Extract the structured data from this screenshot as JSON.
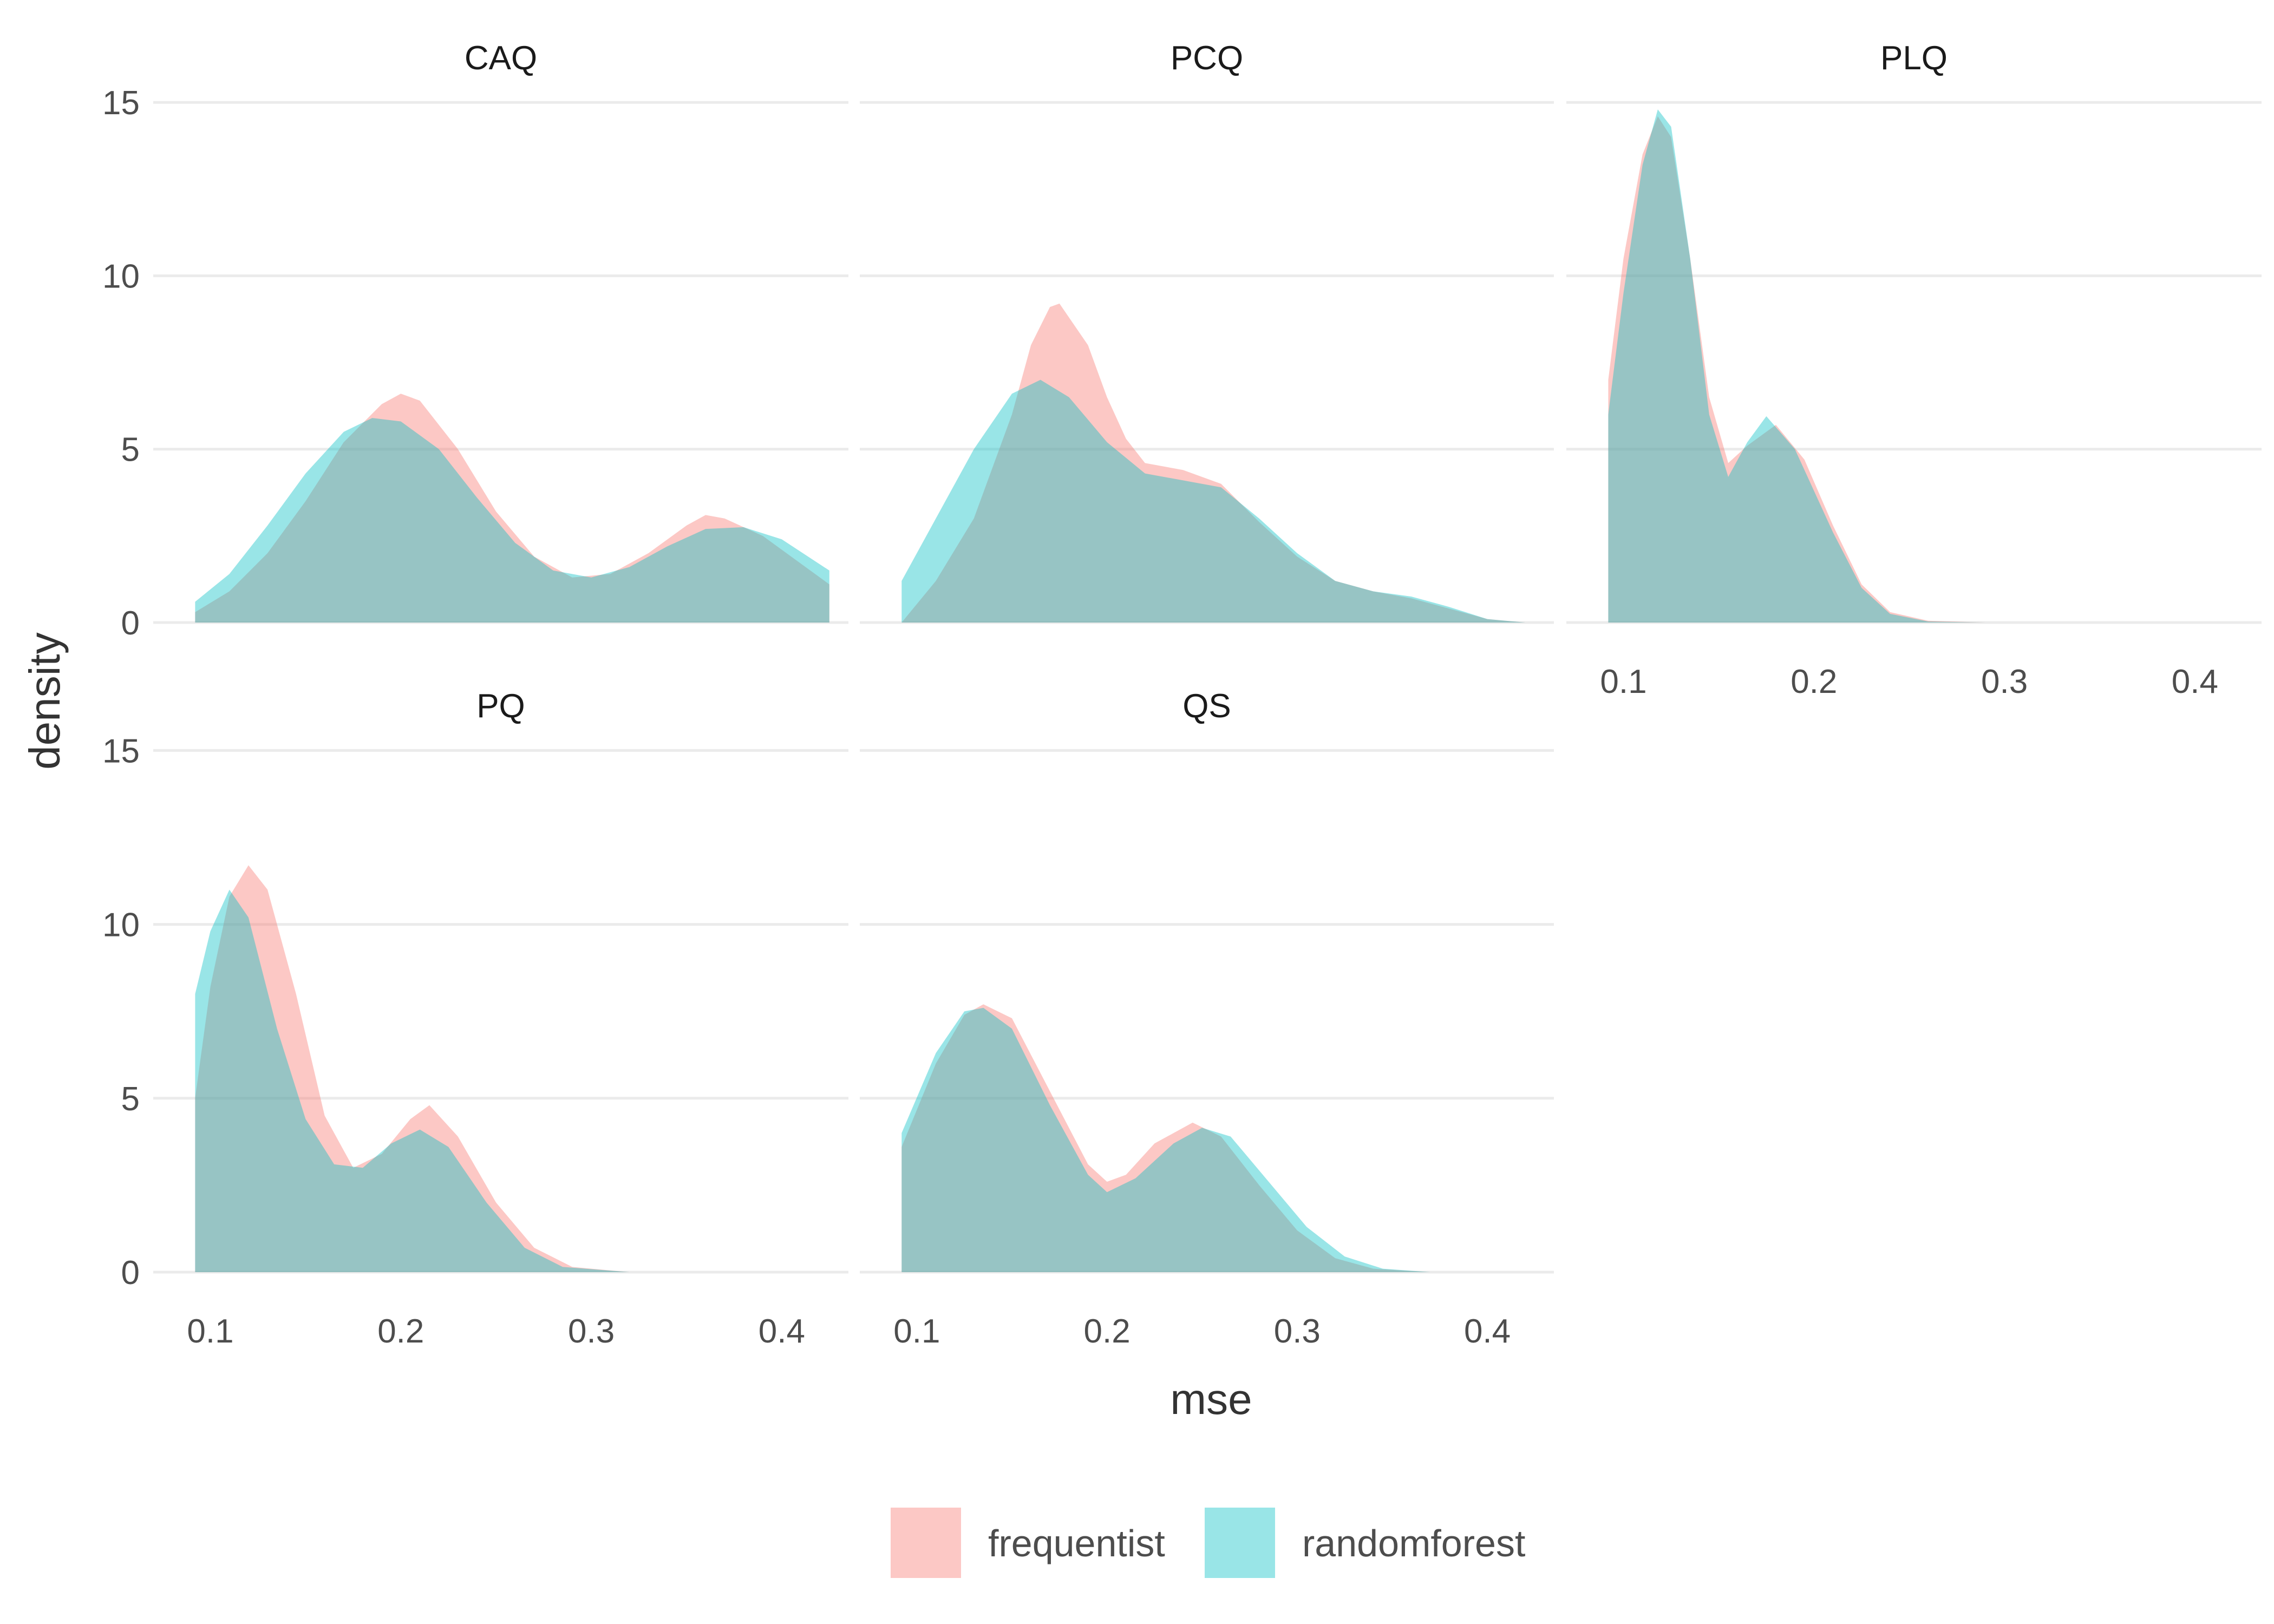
{
  "chart_data": {
    "type": "area",
    "subtype": "faceted-density",
    "xlabel": "mse",
    "ylabel": "density",
    "xlim": [
      0.07,
      0.435
    ],
    "ylim": [
      0,
      15.8
    ],
    "x_ticks": [
      "0.1",
      "0.2",
      "0.3",
      "0.4"
    ],
    "y_ticks": [
      "0",
      "5",
      "10",
      "15"
    ],
    "x_tick_values": [
      0.1,
      0.2,
      0.3,
      0.4
    ],
    "y_tick_values": [
      0,
      5,
      10,
      15
    ],
    "grid": true,
    "legend": {
      "position": "bottom",
      "entries": [
        {
          "label": "frequentist",
          "color": "#F8766D"
        },
        {
          "label": "randomforest",
          "color": "#00BFC4"
        }
      ]
    },
    "fill_opacity": 0.4,
    "facets": [
      {
        "name": "CAQ",
        "series": [
          {
            "name": "frequentist",
            "points": [
              [
                0.092,
                0.3
              ],
              [
                0.11,
                0.9
              ],
              [
                0.13,
                2.0
              ],
              [
                0.15,
                3.5
              ],
              [
                0.17,
                5.2
              ],
              [
                0.19,
                6.3
              ],
              [
                0.2,
                6.6
              ],
              [
                0.21,
                6.4
              ],
              [
                0.23,
                5.0
              ],
              [
                0.25,
                3.2
              ],
              [
                0.27,
                1.9
              ],
              [
                0.29,
                1.3
              ],
              [
                0.31,
                1.4
              ],
              [
                0.33,
                2.0
              ],
              [
                0.35,
                2.8
              ],
              [
                0.36,
                3.1
              ],
              [
                0.37,
                3.0
              ],
              [
                0.39,
                2.5
              ],
              [
                0.41,
                1.7
              ],
              [
                0.425,
                1.1
              ]
            ]
          },
          {
            "name": "randomforest",
            "points": [
              [
                0.092,
                0.6
              ],
              [
                0.11,
                1.4
              ],
              [
                0.13,
                2.8
              ],
              [
                0.15,
                4.3
              ],
              [
                0.17,
                5.5
              ],
              [
                0.185,
                5.9
              ],
              [
                0.2,
                5.8
              ],
              [
                0.22,
                5.0
              ],
              [
                0.24,
                3.6
              ],
              [
                0.26,
                2.3
              ],
              [
                0.28,
                1.5
              ],
              [
                0.3,
                1.3
              ],
              [
                0.32,
                1.6
              ],
              [
                0.34,
                2.2
              ],
              [
                0.36,
                2.7
              ],
              [
                0.38,
                2.75
              ],
              [
                0.4,
                2.4
              ],
              [
                0.425,
                1.5
              ]
            ]
          }
        ]
      },
      {
        "name": "PCQ",
        "series": [
          {
            "name": "frequentist",
            "points": [
              [
                0.092,
                0.0
              ],
              [
                0.11,
                1.2
              ],
              [
                0.13,
                3.0
              ],
              [
                0.15,
                6.0
              ],
              [
                0.16,
                8.0
              ],
              [
                0.17,
                9.1
              ],
              [
                0.175,
                9.2
              ],
              [
                0.19,
                8.0
              ],
              [
                0.2,
                6.5
              ],
              [
                0.21,
                5.3
              ],
              [
                0.22,
                4.6
              ],
              [
                0.24,
                4.4
              ],
              [
                0.26,
                4.0
              ],
              [
                0.28,
                2.9
              ],
              [
                0.3,
                1.9
              ],
              [
                0.32,
                1.2
              ],
              [
                0.34,
                0.9
              ],
              [
                0.36,
                0.7
              ],
              [
                0.38,
                0.4
              ],
              [
                0.4,
                0.1
              ],
              [
                0.42,
                0.0
              ]
            ]
          },
          {
            "name": "randomforest",
            "points": [
              [
                0.092,
                1.2
              ],
              [
                0.11,
                3.0
              ],
              [
                0.13,
                5.0
              ],
              [
                0.15,
                6.6
              ],
              [
                0.165,
                7.0
              ],
              [
                0.18,
                6.5
              ],
              [
                0.2,
                5.2
              ],
              [
                0.22,
                4.3
              ],
              [
                0.24,
                4.1
              ],
              [
                0.26,
                3.9
              ],
              [
                0.28,
                3.0
              ],
              [
                0.3,
                2.0
              ],
              [
                0.32,
                1.2
              ],
              [
                0.34,
                0.9
              ],
              [
                0.36,
                0.75
              ],
              [
                0.38,
                0.45
              ],
              [
                0.4,
                0.1
              ],
              [
                0.42,
                0.0
              ]
            ]
          }
        ]
      },
      {
        "name": "PLQ",
        "series": [
          {
            "name": "frequentist",
            "points": [
              [
                0.092,
                7.0
              ],
              [
                0.1,
                10.5
              ],
              [
                0.11,
                13.5
              ],
              [
                0.118,
                14.6
              ],
              [
                0.125,
                14.0
              ],
              [
                0.135,
                10.5
              ],
              [
                0.145,
                6.5
              ],
              [
                0.155,
                4.6
              ],
              [
                0.165,
                5.1
              ],
              [
                0.18,
                5.7
              ],
              [
                0.195,
                4.7
              ],
              [
                0.21,
                2.8
              ],
              [
                0.225,
                1.1
              ],
              [
                0.24,
                0.3
              ],
              [
                0.26,
                0.05
              ],
              [
                0.29,
                0.0
              ]
            ]
          },
          {
            "name": "randomforest",
            "points": [
              [
                0.092,
                6.0
              ],
              [
                0.1,
                9.5
              ],
              [
                0.11,
                13.2
              ],
              [
                0.118,
                14.8
              ],
              [
                0.125,
                14.3
              ],
              [
                0.135,
                10.5
              ],
              [
                0.145,
                6.0
              ],
              [
                0.155,
                4.2
              ],
              [
                0.165,
                5.2
              ],
              [
                0.175,
                5.95
              ],
              [
                0.19,
                5.0
              ],
              [
                0.21,
                2.6
              ],
              [
                0.225,
                1.0
              ],
              [
                0.24,
                0.25
              ],
              [
                0.26,
                0.03
              ],
              [
                0.29,
                0.0
              ]
            ]
          }
        ]
      },
      {
        "name": "PQ",
        "series": [
          {
            "name": "frequentist",
            "points": [
              [
                0.092,
                5.0
              ],
              [
                0.1,
                8.2
              ],
              [
                0.11,
                10.8
              ],
              [
                0.12,
                11.7
              ],
              [
                0.13,
                11.0
              ],
              [
                0.145,
                8.0
              ],
              [
                0.16,
                4.5
              ],
              [
                0.175,
                3.0
              ],
              [
                0.19,
                3.4
              ],
              [
                0.205,
                4.4
              ],
              [
                0.215,
                4.8
              ],
              [
                0.23,
                3.9
              ],
              [
                0.25,
                2.0
              ],
              [
                0.27,
                0.7
              ],
              [
                0.29,
                0.15
              ],
              [
                0.32,
                0.0
              ]
            ]
          },
          {
            "name": "randomforest",
            "points": [
              [
                0.092,
                8.0
              ],
              [
                0.1,
                9.8
              ],
              [
                0.11,
                11.0
              ],
              [
                0.12,
                10.2
              ],
              [
                0.135,
                7.0
              ],
              [
                0.15,
                4.4
              ],
              [
                0.165,
                3.1
              ],
              [
                0.18,
                3.0
              ],
              [
                0.195,
                3.7
              ],
              [
                0.21,
                4.1
              ],
              [
                0.225,
                3.6
              ],
              [
                0.245,
                2.0
              ],
              [
                0.265,
                0.7
              ],
              [
                0.285,
                0.15
              ],
              [
                0.32,
                0.0
              ]
            ]
          }
        ]
      },
      {
        "name": "QS",
        "series": [
          {
            "name": "frequentist",
            "points": [
              [
                0.092,
                3.6
              ],
              [
                0.11,
                6.0
              ],
              [
                0.125,
                7.4
              ],
              [
                0.135,
                7.7
              ],
              [
                0.15,
                7.3
              ],
              [
                0.17,
                5.2
              ],
              [
                0.19,
                3.1
              ],
              [
                0.2,
                2.6
              ],
              [
                0.21,
                2.8
              ],
              [
                0.225,
                3.7
              ],
              [
                0.245,
                4.3
              ],
              [
                0.26,
                3.9
              ],
              [
                0.28,
                2.5
              ],
              [
                0.3,
                1.2
              ],
              [
                0.32,
                0.4
              ],
              [
                0.34,
                0.1
              ],
              [
                0.37,
                0.0
              ]
            ]
          },
          {
            "name": "randomforest",
            "points": [
              [
                0.092,
                4.0
              ],
              [
                0.11,
                6.3
              ],
              [
                0.125,
                7.5
              ],
              [
                0.135,
                7.6
              ],
              [
                0.15,
                7.0
              ],
              [
                0.17,
                4.8
              ],
              [
                0.19,
                2.8
              ],
              [
                0.2,
                2.3
              ],
              [
                0.215,
                2.7
              ],
              [
                0.235,
                3.7
              ],
              [
                0.25,
                4.15
              ],
              [
                0.265,
                3.9
              ],
              [
                0.285,
                2.6
              ],
              [
                0.305,
                1.3
              ],
              [
                0.325,
                0.45
              ],
              [
                0.345,
                0.1
              ],
              [
                0.37,
                0.0
              ]
            ]
          }
        ]
      }
    ]
  }
}
